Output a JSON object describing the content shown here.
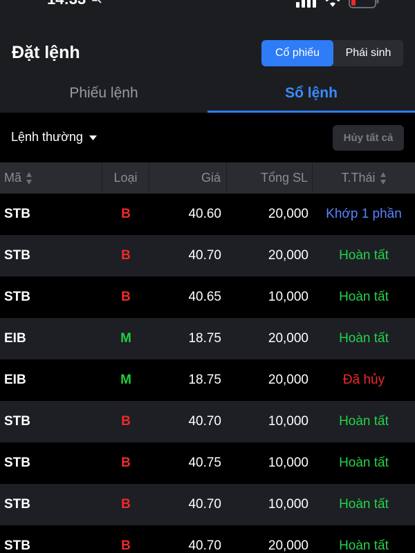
{
  "status_bar": {
    "time": "14:33"
  },
  "header": {
    "title": "Đặt lệnh",
    "segments": [
      {
        "label": "Cổ phiếu",
        "active": true
      },
      {
        "label": "Phái sinh",
        "active": false
      }
    ]
  },
  "tabs": [
    {
      "label": "Phiếu lệnh",
      "active": false
    },
    {
      "label": "Sổ lệnh",
      "active": true
    }
  ],
  "filter": {
    "order_type": "Lệnh thường",
    "cancel_all_label": "Hủy tất cả"
  },
  "table": {
    "headers": {
      "ma": "Mã",
      "loai": "Loại",
      "gia": "Giá",
      "tong_sl": "Tổng SL",
      "trang_thai": "T.Thái"
    },
    "rows": [
      {
        "ma": "STB",
        "loai": "B",
        "gia": "40.60",
        "sl": "20,000",
        "tt": "Khớp 1 phần"
      },
      {
        "ma": "STB",
        "loai": "B",
        "gia": "40.70",
        "sl": "20,000",
        "tt": "Hoàn tất"
      },
      {
        "ma": "STB",
        "loai": "B",
        "gia": "40.65",
        "sl": "10,000",
        "tt": "Hoàn tất"
      },
      {
        "ma": "EIB",
        "loai": "M",
        "gia": "18.75",
        "sl": "20,000",
        "tt": "Hoàn tất"
      },
      {
        "ma": "EIB",
        "loai": "M",
        "gia": "18.75",
        "sl": "20,000",
        "tt": "Đã hủy"
      },
      {
        "ma": "STB",
        "loai": "B",
        "gia": "40.70",
        "sl": "10,000",
        "tt": "Hoàn tất"
      },
      {
        "ma": "STB",
        "loai": "B",
        "gia": "40.75",
        "sl": "10,000",
        "tt": "Hoàn tất"
      },
      {
        "ma": "STB",
        "loai": "B",
        "gia": "40.70",
        "sl": "10,000",
        "tt": "Hoàn tất"
      },
      {
        "ma": "STB",
        "loai": "B",
        "gia": "40.70",
        "sl": "20,000",
        "tt": "Hoàn tất"
      }
    ]
  },
  "colors": {
    "accent": "#2e7cf6",
    "buy": "#ee2a2a",
    "margin": "#1fce3c",
    "status_done": "#24d24a",
    "status_partial": "#5a83ff",
    "status_cancel": "#ee2a2a"
  },
  "icons": [
    "bell-slash-icon",
    "cellular-signal-icon",
    "wifi-icon",
    "battery-low-icon",
    "caret-down-icon",
    "sort-icon"
  ]
}
